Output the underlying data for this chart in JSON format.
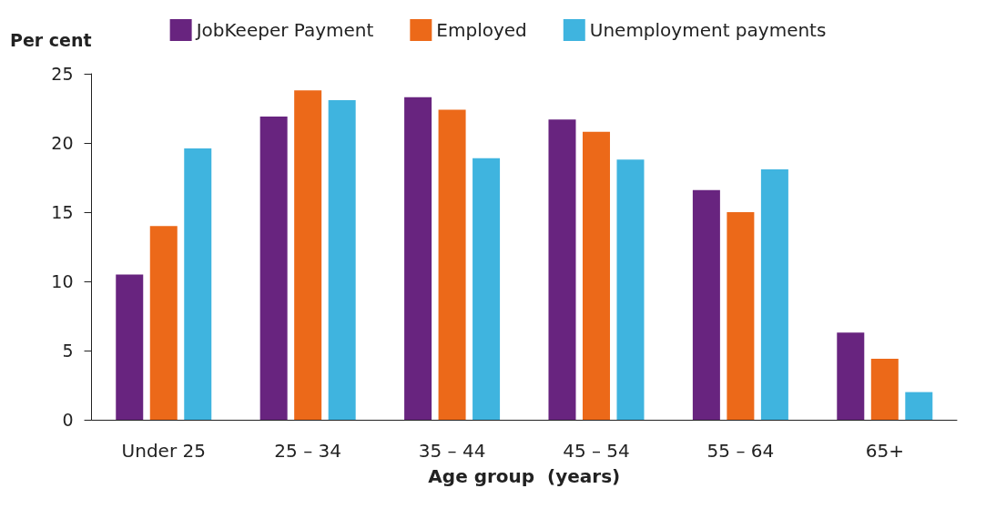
{
  "chart_data": {
    "type": "bar",
    "xlabel": "Age group  (years)",
    "ylabel": "Per cent",
    "categories": [
      "Under 25",
      "25 – 34",
      "35 – 44",
      "45 – 54",
      "55 – 64",
      "65+"
    ],
    "series": [
      {
        "name": "JobKeeper Payment",
        "color": "#68247f",
        "values": [
          10.5,
          21.9,
          23.3,
          21.7,
          16.6,
          6.3
        ]
      },
      {
        "name": "Employed",
        "color": "#ec6919",
        "values": [
          14.0,
          23.8,
          22.4,
          20.8,
          15.0,
          4.4
        ]
      },
      {
        "name": "Unemployment payments",
        "color": "#3fb4df",
        "values": [
          19.6,
          23.1,
          18.9,
          18.8,
          18.1,
          2.0
        ]
      }
    ],
    "ylim": [
      0,
      25
    ],
    "yticks": [
      0,
      5,
      10,
      15,
      20,
      25
    ],
    "grid": false,
    "legend": "top"
  }
}
